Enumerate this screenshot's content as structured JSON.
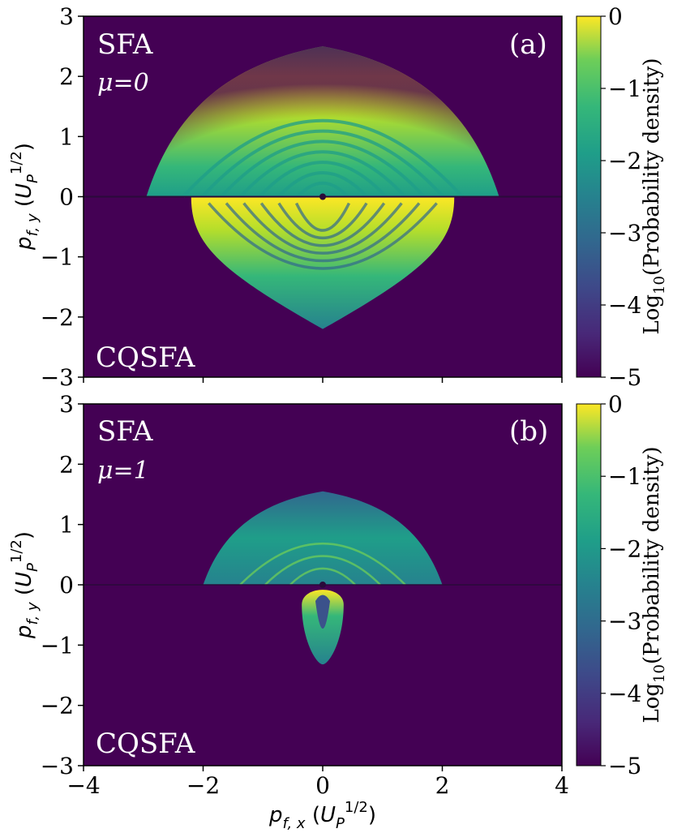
{
  "chart_data": [
    {
      "type": "heatmap",
      "panel_label": "(a)",
      "top_label": "SFA",
      "param_label": "μ=0",
      "bottom_label": "CQSFA",
      "xlabel": "p_{f,x} (U_P^{1/2})",
      "ylabel": "p_{f,y} (U_P^{1/2})",
      "xlim": [
        -4,
        4
      ],
      "ylim": [
        -3,
        3
      ],
      "x_ticks": [
        -4,
        -2,
        0,
        2,
        4
      ],
      "y_ticks": [
        -3,
        -2,
        -1,
        0,
        1,
        2,
        3
      ],
      "colorbar": {
        "label": "Log10(Probability density)",
        "range": [
          -5,
          0
        ],
        "ticks": [
          0,
          -1,
          -2,
          -3,
          -4,
          -5
        ]
      },
      "features": {
        "sfa_peak_py": 2.5,
        "sfa_edge_px": 2.95,
        "cqsfa_min_py": -2.2,
        "cqsfa_edge_px": 2.2
      }
    },
    {
      "type": "heatmap",
      "panel_label": "(b)",
      "top_label": "SFA",
      "param_label": "μ=1",
      "bottom_label": "CQSFA",
      "xlabel": "p_{f,x} (U_P^{1/2})",
      "ylabel": "p_{f,y} (U_P^{1/2})",
      "xlim": [
        -4,
        4
      ],
      "ylim": [
        -3,
        3
      ],
      "x_ticks": [
        -4,
        -2,
        0,
        2,
        4
      ],
      "y_ticks": [
        -3,
        -2,
        -1,
        0,
        1,
        2,
        3
      ],
      "colorbar": {
        "label": "Log10(Probability density)",
        "range": [
          -5,
          0
        ],
        "ticks": [
          0,
          -1,
          -2,
          -3,
          -4,
          -5
        ]
      },
      "features": {
        "sfa_peak_py": 1.55,
        "sfa_edge_px": 2.0,
        "cqsfa_min_py": -1.32,
        "cqsfa_edge_px": 0.35
      }
    }
  ],
  "tick_text": [
    "−4",
    "−2",
    "0",
    "2",
    "4",
    "−3",
    "−2",
    "−1",
    "0",
    "1",
    "2",
    "3",
    "0",
    "−1",
    "−2",
    "−3",
    "−4",
    "−5"
  ]
}
